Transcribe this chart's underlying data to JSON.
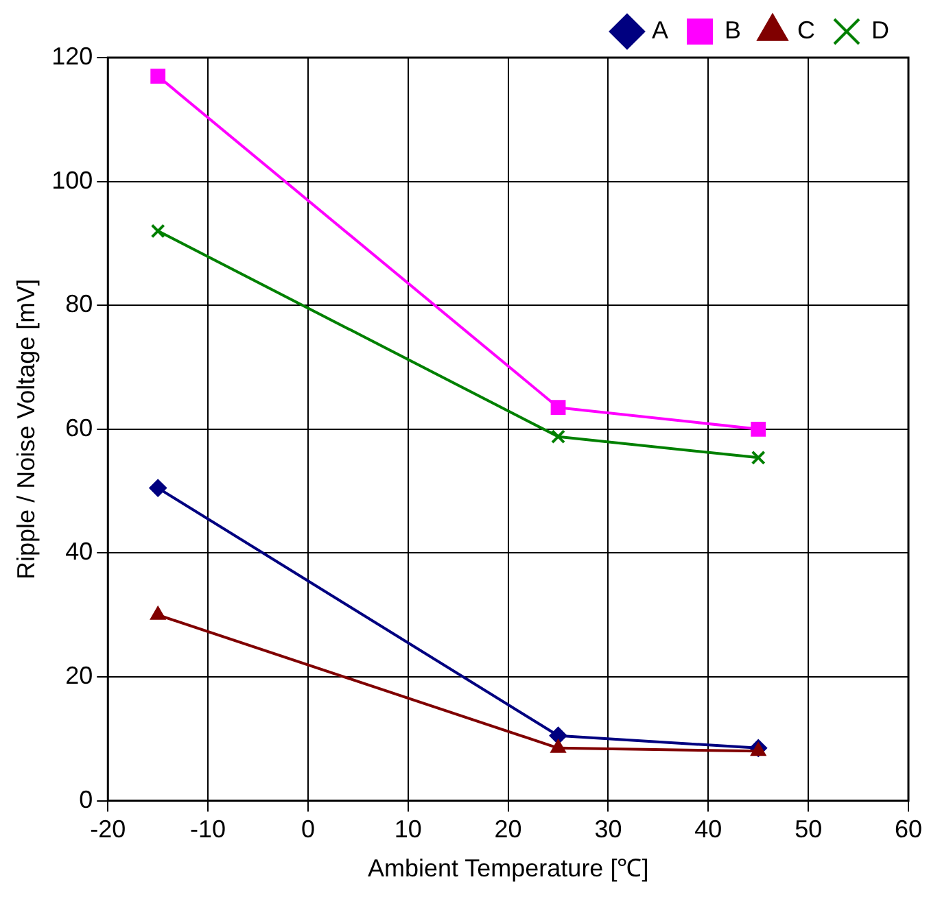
{
  "chart_data": {
    "type": "line",
    "xlabel": "Ambient Temperature [℃]",
    "ylabel": "Ripple / Noise Voltage [mV]",
    "x": [
      -15,
      25,
      45
    ],
    "series": [
      {
        "name": "A",
        "color": "#000080",
        "marker": "diamond",
        "values": [
          50.5,
          10.5,
          8.5
        ]
      },
      {
        "name": "B",
        "color": "#ff00ff",
        "marker": "square",
        "values": [
          117,
          63.5,
          60
        ]
      },
      {
        "name": "C",
        "color": "#800000",
        "marker": "triangle",
        "values": [
          30,
          8.5,
          8
        ]
      },
      {
        "name": "D",
        "color": "#008000",
        "marker": "cross",
        "values": [
          92,
          58.8,
          55.4
        ]
      }
    ],
    "xlim": [
      -20,
      60
    ],
    "xticks": [
      -20,
      -10,
      0,
      10,
      20,
      30,
      40,
      50,
      60
    ],
    "ylim": [
      0,
      120
    ],
    "yticks": [
      0,
      20,
      40,
      60,
      80,
      100,
      120
    ],
    "grid": true,
    "legend": "top right",
    "line_style": "solid"
  }
}
